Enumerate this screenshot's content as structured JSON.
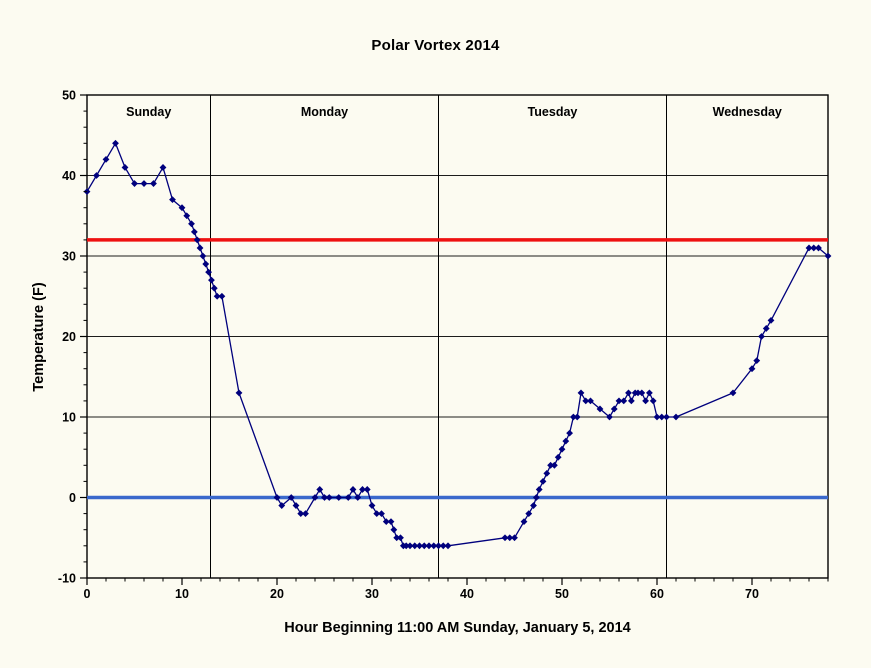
{
  "page": {
    "background": "#fcfbf1"
  },
  "chart_data": {
    "type": "line",
    "title": "Polar Vortex 2014",
    "xlabel": "Hour Beginning 11:00 AM Sunday, January 5, 2014",
    "ylabel": "Temperature (F)",
    "xlim": [
      0,
      78
    ],
    "ylim": [
      -10,
      50
    ],
    "x_ticks": [
      0,
      10,
      20,
      30,
      40,
      50,
      60,
      70
    ],
    "y_ticks": [
      -10,
      0,
      10,
      20,
      30,
      40,
      50
    ],
    "x_minor_step": 2,
    "y_minor_step": 2,
    "grid": "horizontal-only",
    "legend": "none",
    "gridlines_y": [
      0,
      10,
      20,
      30,
      40
    ],
    "day_dividers": [
      13,
      37,
      61
    ],
    "day_labels": [
      {
        "label": "Sunday",
        "center_hour": 6.5
      },
      {
        "label": "Monday",
        "center_hour": 25
      },
      {
        "label": "Tuesday",
        "center_hour": 49
      },
      {
        "label": "Wednesday",
        "center_hour": 69.5
      }
    ],
    "reference_lines": [
      {
        "name": "freezing-line",
        "y": 32,
        "color": "#ee1111",
        "width": 3.5
      },
      {
        "name": "zero-line",
        "y": 0,
        "color": "#3a68cc",
        "width": 3.5
      }
    ],
    "colors": {
      "axis": "#000000",
      "gridline": "#1c1c1c",
      "series": "#00007d"
    },
    "series": [
      {
        "name": "temperature",
        "color": "#00007d",
        "marker": "diamond",
        "points": [
          [
            0,
            38
          ],
          [
            1,
            40
          ],
          [
            2,
            42
          ],
          [
            3,
            44
          ],
          [
            4,
            41
          ],
          [
            5,
            39
          ],
          [
            6,
            39
          ],
          [
            7,
            39
          ],
          [
            8,
            41
          ],
          [
            9,
            37
          ],
          [
            10,
            36
          ],
          [
            10.5,
            35
          ],
          [
            11,
            34
          ],
          [
            11.3,
            33
          ],
          [
            11.6,
            32
          ],
          [
            11.9,
            31
          ],
          [
            12.2,
            30
          ],
          [
            12.5,
            29
          ],
          [
            12.8,
            28
          ],
          [
            13.1,
            27
          ],
          [
            13.4,
            26
          ],
          [
            13.7,
            25
          ],
          [
            14.2,
            25
          ],
          [
            16,
            13
          ],
          [
            20,
            0
          ],
          [
            20.5,
            -1
          ],
          [
            21.5,
            0
          ],
          [
            22,
            -1
          ],
          [
            22.5,
            -2
          ],
          [
            23,
            -2
          ],
          [
            24,
            0
          ],
          [
            24.5,
            1
          ],
          [
            25,
            0
          ],
          [
            25.5,
            0
          ],
          [
            26.5,
            0
          ],
          [
            27.5,
            0
          ],
          [
            28,
            1
          ],
          [
            28.5,
            0
          ],
          [
            29,
            1
          ],
          [
            29.5,
            1
          ],
          [
            30,
            -1
          ],
          [
            30.5,
            -2
          ],
          [
            31,
            -2
          ],
          [
            31.5,
            -3
          ],
          [
            32,
            -3
          ],
          [
            32.3,
            -4
          ],
          [
            32.6,
            -5
          ],
          [
            33,
            -5
          ],
          [
            33.3,
            -6
          ],
          [
            33.6,
            -6
          ],
          [
            34,
            -6
          ],
          [
            34.5,
            -6
          ],
          [
            35,
            -6
          ],
          [
            35.5,
            -6
          ],
          [
            36,
            -6
          ],
          [
            36.5,
            -6
          ],
          [
            37,
            -6
          ],
          [
            37.5,
            -6
          ],
          [
            38,
            -6
          ],
          [
            44,
            -5
          ],
          [
            44.5,
            -5
          ],
          [
            45,
            -5
          ],
          [
            46,
            -3
          ],
          [
            46.5,
            -2
          ],
          [
            47,
            -1
          ],
          [
            47.3,
            0
          ],
          [
            47.6,
            1
          ],
          [
            48,
            2
          ],
          [
            48.4,
            3
          ],
          [
            48.8,
            4
          ],
          [
            49.2,
            4
          ],
          [
            49.6,
            5
          ],
          [
            50,
            6
          ],
          [
            50.4,
            7
          ],
          [
            50.8,
            8
          ],
          [
            51.2,
            10
          ],
          [
            51.6,
            10
          ],
          [
            52,
            13
          ],
          [
            52.5,
            12
          ],
          [
            53,
            12
          ],
          [
            54,
            11
          ],
          [
            55,
            10
          ],
          [
            55.5,
            11
          ],
          [
            56,
            12
          ],
          [
            56.5,
            12
          ],
          [
            57,
            13
          ],
          [
            57.3,
            12
          ],
          [
            57.7,
            13
          ],
          [
            58,
            13
          ],
          [
            58.4,
            13
          ],
          [
            58.8,
            12
          ],
          [
            59.2,
            13
          ],
          [
            59.6,
            12
          ],
          [
            60,
            10
          ],
          [
            60.5,
            10
          ],
          [
            61,
            10
          ],
          [
            62,
            10
          ],
          [
            68,
            13
          ],
          [
            70,
            16
          ],
          [
            70.5,
            17
          ],
          [
            71,
            20
          ],
          [
            71.5,
            21
          ],
          [
            72,
            22
          ],
          [
            76,
            31
          ],
          [
            76.5,
            31
          ],
          [
            77,
            31
          ],
          [
            78,
            30
          ]
        ]
      }
    ]
  }
}
